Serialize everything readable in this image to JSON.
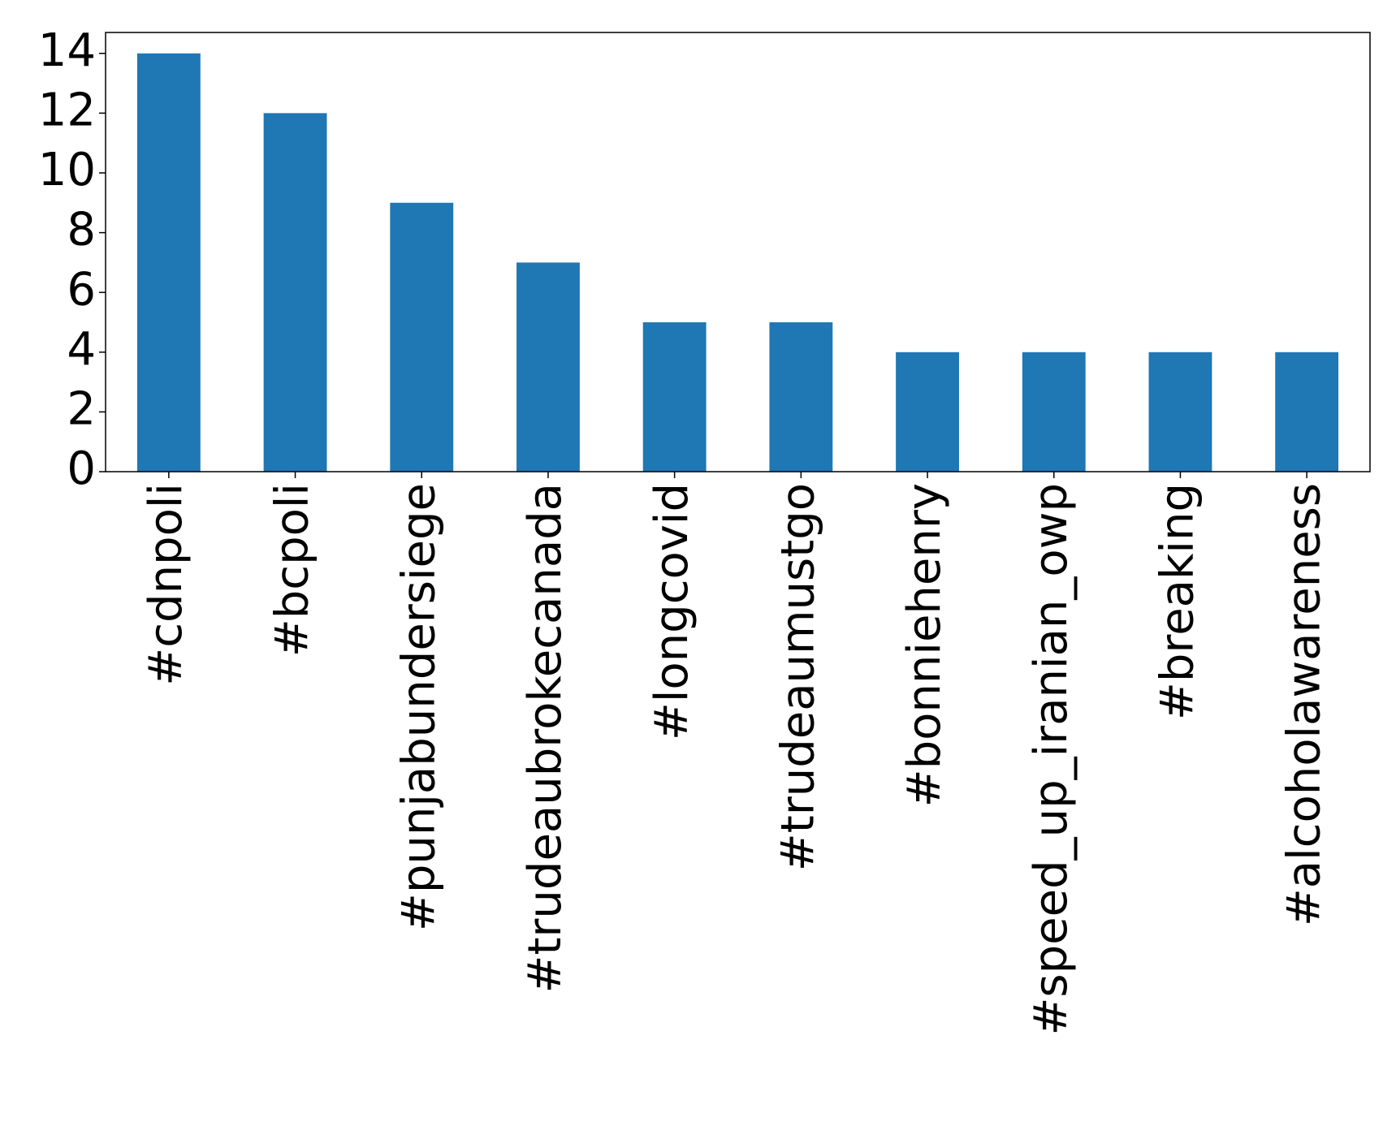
{
  "chart_data": {
    "type": "bar",
    "categories": [
      "#cdnpoli",
      "#bcpoli",
      "#punjabundersiege",
      "#trudeaubrokecanada",
      "#longcovid",
      "#trudeaumustgo",
      "#bonniehenry",
      "#speed_up_iranian_owp",
      "#breaking",
      "#alcoholawareness"
    ],
    "values": [
      14,
      12,
      9,
      7,
      5,
      5,
      4,
      4,
      4,
      4
    ],
    "color": "#1f77b4",
    "ylim": [
      0,
      14.7
    ],
    "yticks": [
      0,
      2,
      4,
      6,
      8,
      10,
      12,
      14
    ],
    "grid": false
  }
}
